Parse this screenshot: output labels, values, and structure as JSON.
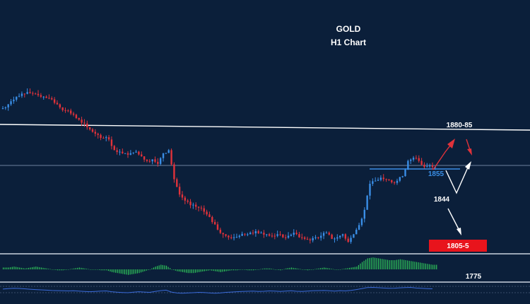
{
  "chart_data": {
    "type": "candlestick",
    "title": "GOLD",
    "subtitle": "H1 Chart",
    "colors": {
      "background": "#0b1f3a",
      "bull": "#3a8ee6",
      "bear": "#e0323a",
      "resistance": "#ffffff",
      "support": "#3a8ee6",
      "target_box": "#e8141c",
      "macd_hist": "#2fc45a",
      "rsi_line": "#3a6ad8"
    },
    "price_series": [
      1895,
      1899,
      1902,
      1904,
      1905,
      1904,
      1903,
      1902,
      1901,
      1898,
      1895,
      1893,
      1891,
      1888,
      1885,
      1882,
      1879,
      1877,
      1875,
      1874,
      1867,
      1866,
      1865,
      1865,
      1866,
      1863,
      1860,
      1861,
      1858,
      1865,
      1867,
      1848,
      1838,
      1834,
      1831,
      1830,
      1829,
      1825,
      1820,
      1815,
      1812,
      1810,
      1810,
      1811,
      1812,
      1813,
      1814,
      1813,
      1812,
      1811,
      1812,
      1810,
      1811,
      1813,
      1810,
      1809,
      1808,
      1810,
      1811,
      1813,
      1809,
      1810,
      1812,
      1807,
      1812,
      1818,
      1828,
      1845,
      1847,
      1849,
      1848,
      1846,
      1847,
      1850,
      1860,
      1862,
      1860,
      1856,
      1857,
      1856
    ],
    "annotations": {
      "resistance_label": "1880-85",
      "support_label": "1855",
      "level_1844": "1844",
      "target_label": "1805-5",
      "level_1775": "1775"
    },
    "macd_histogram": [
      2,
      2,
      3,
      2,
      1,
      2,
      3,
      2,
      1,
      0,
      -1,
      -1,
      0,
      1,
      2,
      1,
      0,
      0,
      -1,
      -1,
      -3,
      -4,
      -5,
      -6,
      -5,
      -4,
      -2,
      0,
      3,
      5,
      4,
      0,
      -2,
      -3,
      -4,
      -4,
      -3,
      -2,
      -1,
      -2,
      -3,
      -2,
      -1,
      -1,
      0,
      -1,
      -1,
      0,
      1,
      1,
      0,
      -1,
      1,
      2,
      1,
      0,
      -1,
      0,
      1,
      2,
      1,
      0,
      0,
      1,
      2,
      3,
      8,
      12,
      13,
      12,
      11,
      10,
      10,
      11,
      10,
      9,
      8,
      7,
      6,
      5
    ],
    "rsi": [
      55,
      58,
      60,
      59,
      57,
      54,
      52,
      50,
      48,
      46,
      45,
      44,
      43,
      44,
      42,
      40,
      38,
      40,
      42,
      43,
      38,
      35,
      33,
      32,
      35,
      38,
      36,
      34,
      40,
      45,
      48,
      36,
      30,
      28,
      30,
      32,
      34,
      33,
      30,
      28,
      30,
      34,
      36,
      38,
      40,
      41,
      42,
      40,
      41,
      43,
      42,
      40,
      42,
      44,
      41,
      40,
      42,
      44,
      45,
      46,
      44,
      42,
      45,
      43,
      47,
      52,
      58,
      65,
      66,
      64,
      62,
      60,
      61,
      63,
      65,
      66,
      62,
      60,
      58,
      57
    ]
  }
}
